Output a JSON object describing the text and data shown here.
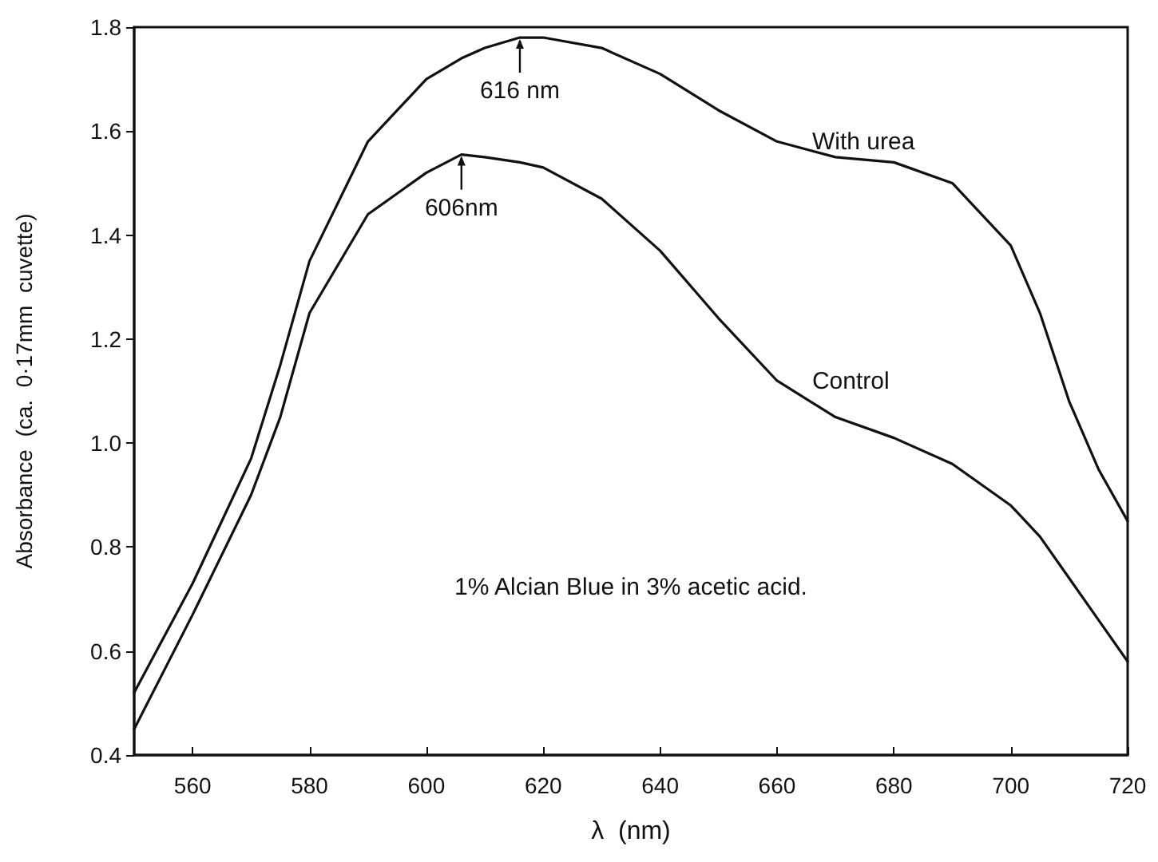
{
  "chart_data": {
    "type": "line",
    "xlabel": "λ  (nm)",
    "ylabel": "Absorbance  (ca.  0·17mm  cuvette)",
    "xlim": [
      550,
      720
    ],
    "xticks": [
      560,
      580,
      600,
      620,
      640,
      660,
      680,
      700,
      720
    ],
    "ylim": [
      0.4,
      1.8
    ],
    "yticks": [
      0.4,
      0.6,
      0.8,
      {
        "value": 1.0,
        "label": "1.0"
      },
      1.2,
      1.4,
      1.6,
      1.8
    ],
    "grid": false,
    "legend": false,
    "marker": "none",
    "line_style": "solid",
    "x": [
      550,
      560,
      570,
      575,
      580,
      590,
      600,
      606,
      610,
      616,
      620,
      630,
      640,
      650,
      660,
      670,
      680,
      690,
      700,
      705,
      710,
      715,
      720
    ],
    "series": [
      {
        "name": "With urea",
        "color": "#111111",
        "values": [
          0.52,
          0.73,
          0.97,
          1.15,
          1.35,
          1.58,
          1.7,
          1.74,
          1.76,
          1.78,
          1.78,
          1.76,
          1.71,
          1.64,
          1.58,
          1.55,
          1.54,
          1.5,
          1.38,
          1.25,
          1.08,
          0.95,
          0.85
        ]
      },
      {
        "name": "Control",
        "color": "#111111",
        "values": [
          0.45,
          0.67,
          0.9,
          1.05,
          1.25,
          1.44,
          1.52,
          1.555,
          1.55,
          1.54,
          1.53,
          1.47,
          1.37,
          1.24,
          1.12,
          1.05,
          1.01,
          0.96,
          0.88,
          0.82,
          0.74,
          0.66,
          0.58
        ]
      }
    ],
    "annotations": [
      {
        "text": "616 nm",
        "x": 616,
        "y": 1.78
      },
      {
        "text": "606nm",
        "x": 606,
        "y": 1.555
      },
      "1% Alcian  Blue  in  3%  acetic  acid."
    ]
  }
}
